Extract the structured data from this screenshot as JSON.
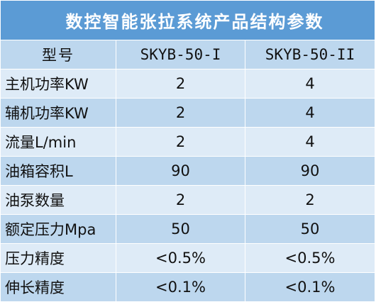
{
  "title": "数控智能张拉系统产品结构参数",
  "header": {
    "label": "型号",
    "model_1": "SKYB-50-I",
    "model_2": "SKYB-50-II"
  },
  "rows": [
    {
      "label": "主机功率KW",
      "v1": "2",
      "v2": "4"
    },
    {
      "label": "辅机功率KW",
      "v1": "2",
      "v2": "4"
    },
    {
      "label": "流量L/min",
      "v1": "2",
      "v2": "4"
    },
    {
      "label": "油箱容积L",
      "v1": "90",
      "v2": "90"
    },
    {
      "label": "油泵数量",
      "v1": "2",
      "v2": "2"
    },
    {
      "label": "额定压力Mpa",
      "v1": "50",
      "v2": "50"
    },
    {
      "label": "压力精度",
      "v1": "<0.5%",
      "v2": "<0.5%"
    },
    {
      "label": "伸长精度",
      "v1": "<0.1%",
      "v2": "<0.1%"
    }
  ],
  "colors": {
    "title_bg": "#5b9bd5",
    "row_light": "#deebf7",
    "row_dark": "#bdd7ee"
  }
}
